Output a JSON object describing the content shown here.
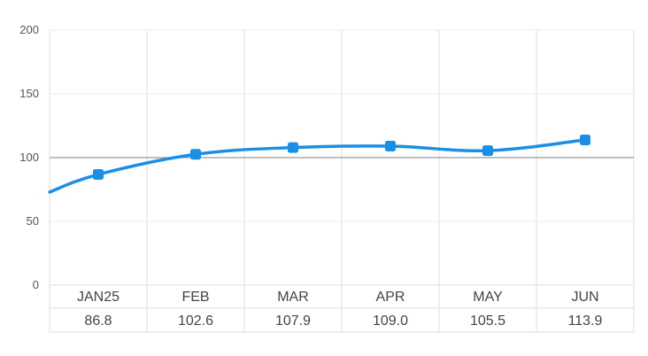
{
  "chart_data": {
    "type": "line",
    "title": "",
    "xlabel": "",
    "ylabel": "",
    "ylim": [
      0,
      200
    ],
    "yticks": [
      0,
      50,
      100,
      150,
      200
    ],
    "reference_line": 100,
    "categories": [
      "JAN25",
      "FEB",
      "MAR",
      "APR",
      "MAY",
      "JUN"
    ],
    "table_values": [
      "86.8",
      "102.6",
      "107.9",
      "109.0",
      "105.5",
      "113.9"
    ],
    "series": [
      {
        "values": [
          86.8,
          102.6,
          107.9,
          109.0,
          105.5,
          113.9
        ],
        "leading_value": 73,
        "color": "#1a8fe6"
      }
    ],
    "grid": true,
    "legend": "none"
  }
}
